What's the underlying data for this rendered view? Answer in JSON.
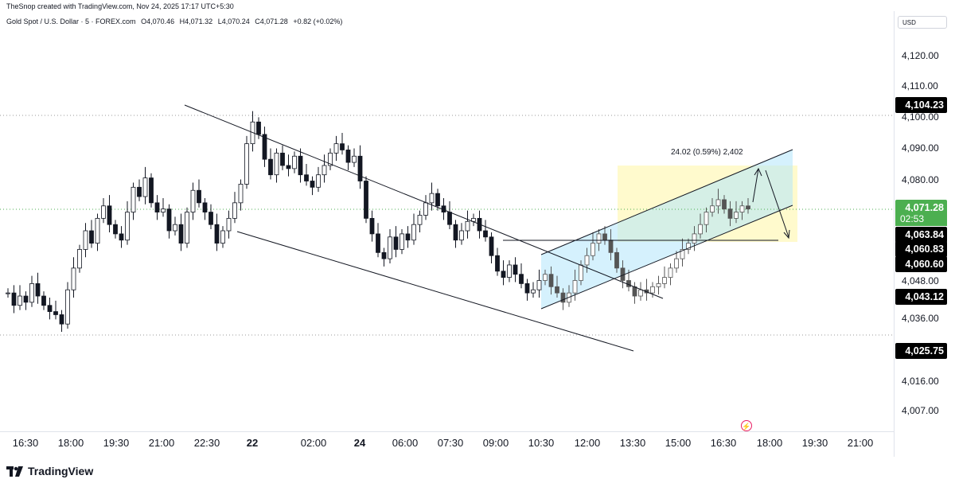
{
  "header": {
    "created_by": "TheSnop created with TradingView.com, Nov 24, 2025 17:17 UTC+5:30",
    "symbol": "Gold Spot / U.S. Dollar · 5 · FOREX.com",
    "open": "O4,070.46",
    "high": "H4,071.32",
    "low": "L4,070.24",
    "close": "C4,071.28",
    "change": "+0.82 (+0.02%)"
  },
  "currency": "USD",
  "price_axis": {
    "ticks": [
      "4,120.00",
      "4,110.00",
      "4,100.00",
      "4,090.00",
      "4,080.00",
      "4,048.00",
      "4,036.00",
      "4,016.00",
      "4,007.00"
    ],
    "labels": {
      "level_high": "4,104.23",
      "last_price": "4,071.28",
      "countdown": "02:53",
      "l1": "4,063.84",
      "l2": "4,060.83",
      "l3": "4,060.60",
      "l4": "4,043.12",
      "level_low": "4,025.75"
    }
  },
  "time_axis": [
    "16:30",
    "18:00",
    "19:30",
    "21:00",
    "22:30",
    "22",
    "02:00",
    "24",
    "06:00",
    "07:30",
    "09:00",
    "10:30",
    "12:00",
    "13:30",
    "15:00",
    "16:30",
    "18:00",
    "19:30",
    "21:00"
  ],
  "measure_label": "24.02 (0.59%) 2,402",
  "brand": "TradingView",
  "icons": {
    "logo": "tradingview-logo-icon",
    "alert": "lightning-icon"
  },
  "colors": {
    "up": "#089981",
    "down": "#f23645",
    "candle": "#000000",
    "last_price": "#4caf50"
  },
  "chart_data": {
    "type": "candlestick",
    "symbol": "Gold Spot / U.S. Dollar",
    "timeframe": "5",
    "y_range": [
      4000,
      4128
    ],
    "candles_close_approx": [
      4044,
      4040,
      4043,
      4041,
      4047,
      4043,
      4040,
      4038,
      4037,
      4034,
      4045,
      4052,
      4058,
      4064,
      4060,
      4068,
      4072,
      4066,
      4063,
      4061,
      4070,
      4078,
      4075,
      4081,
      4073,
      4070,
      4071,
      4064,
      4066,
      4060,
      4070,
      4077,
      4073,
      4070,
      4066,
      4060,
      4064,
      4068,
      4073,
      4079,
      4092,
      4099,
      4095,
      4087,
      4082,
      4089,
      4085,
      4084,
      4088,
      4082,
      4080,
      4078,
      4082,
      4085,
      4089,
      4092,
      4090,
      4086,
      4088,
      4080,
      4068,
      4063,
      4057,
      4055,
      4062,
      4058,
      4063,
      4061,
      4066,
      4069,
      4073,
      4076,
      4072,
      4070,
      4066,
      4061,
      4064,
      4067,
      4068,
      4064,
      4062,
      4056,
      4051,
      4049,
      4053,
      4050,
      4047,
      4044,
      4045,
      4048,
      4050,
      4046,
      4044,
      4041,
      4044,
      4048,
      4053,
      4056,
      4060,
      4063,
      4061,
      4057,
      4052,
      4048,
      4046,
      4043,
      4045,
      4044,
      4046,
      4047,
      4049,
      4052,
      4055,
      4058,
      4060,
      4063,
      4066,
      4070,
      4072,
      4074,
      4071,
      4068,
      4070,
      4072,
      4071
    ]
  }
}
